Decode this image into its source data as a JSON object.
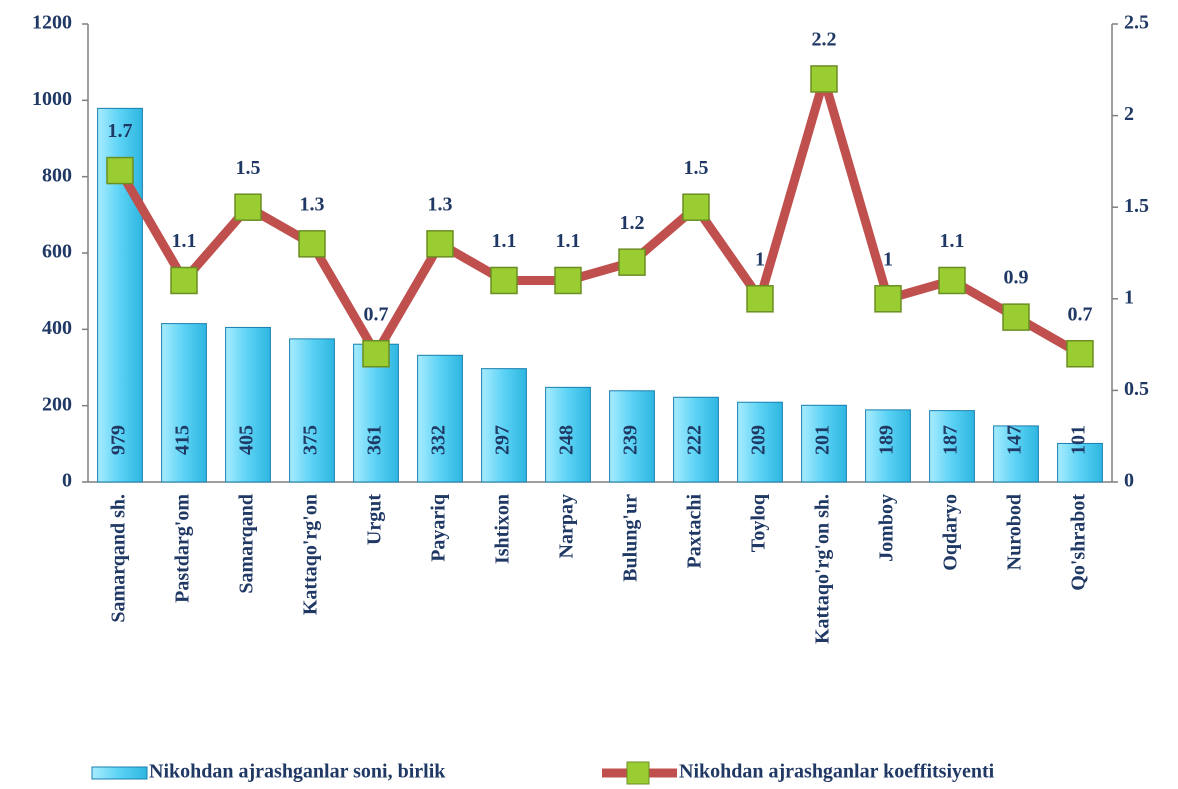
{
  "chart_data": {
    "type": "combo",
    "categories": [
      "Samarqand sh.",
      "Pastdarg'om",
      "Samarqand",
      "Kattaqo'rg'on",
      "Urgut",
      "Payariq",
      "Ishtixon",
      "Narpay",
      "Bulung'ur",
      "Paxtachi",
      "Toyloq",
      "Kattaqo'rg'on sh.",
      "Jomboy",
      "Oqdaryo",
      "Nurobod",
      "Qo'shrabot"
    ],
    "series": [
      {
        "name": "Nikohdan ajrashganlar soni, birlik",
        "type": "bar",
        "color": "#5ad2f4",
        "values": [
          979,
          415,
          405,
          375,
          361,
          332,
          297,
          248,
          239,
          222,
          209,
          201,
          189,
          187,
          147,
          101
        ]
      },
      {
        "name": "Nikohdan ajrashganlar koeffitsiyenti",
        "type": "line",
        "axis": "y2",
        "color": "#c0504d",
        "marker_color": "#9acd32",
        "values": [
          1.7,
          1.1,
          1.5,
          1.3,
          0.7,
          1.3,
          1.1,
          1.1,
          1.2,
          1.5,
          1,
          2.2,
          1,
          1.1,
          0.9,
          0.7
        ]
      }
    ],
    "ylim": [
      0,
      1200
    ],
    "yticks": [
      0,
      200,
      400,
      600,
      800,
      1000,
      1200
    ],
    "y2lim": [
      0,
      2.5
    ],
    "y2ticks": [
      0,
      0.5,
      1,
      1.5,
      2,
      2.5
    ],
    "grid": false,
    "legend": "bottom"
  }
}
